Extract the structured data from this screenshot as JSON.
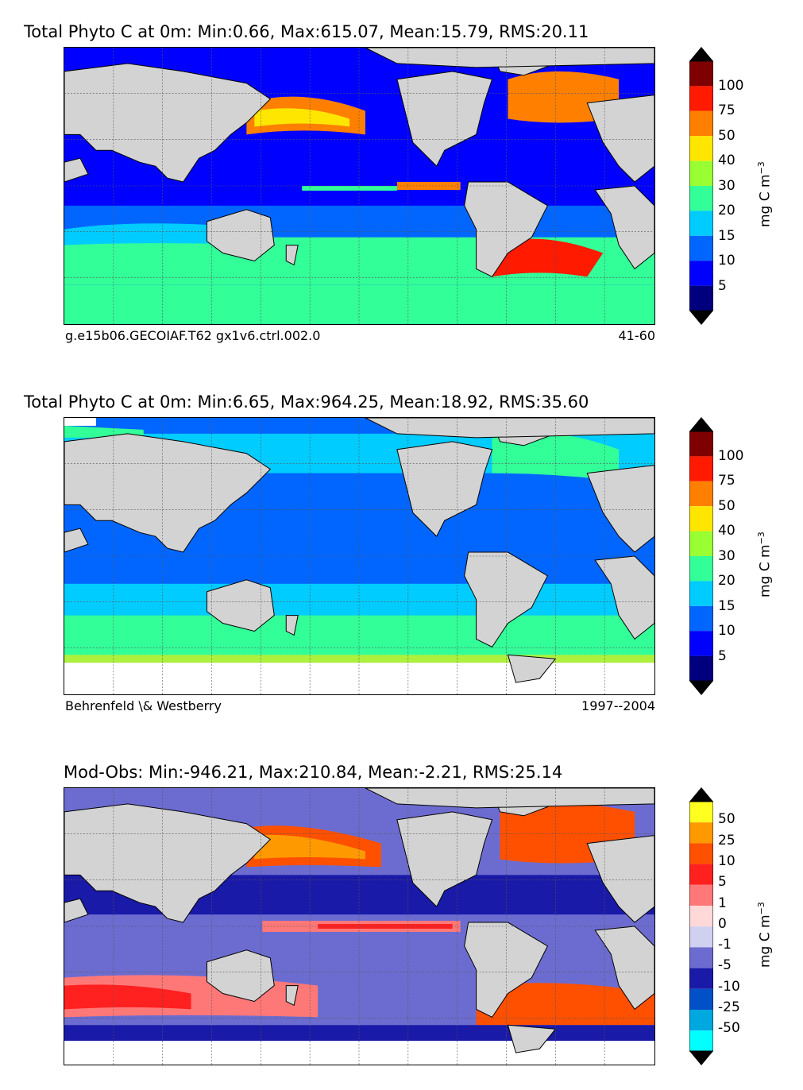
{
  "colors": {
    "land": "#d3d3d3",
    "conc_scale": [
      "#00007f",
      "#0000ff",
      "#0066ff",
      "#00ccff",
      "#33ff99",
      "#99ff33",
      "#ffe600",
      "#ff8000",
      "#ff1a00",
      "#7f0000"
    ],
    "diff_scale": [
      "#00ffff",
      "#00a8e0",
      "#0050c8",
      "#1a1aa8",
      "#6c6cd0",
      "#d0d0f0",
      "#ffd8d8",
      "#ff7878",
      "#ff2020",
      "#ff5000",
      "#ff9900",
      "#ffff20"
    ]
  },
  "panels": [
    {
      "title": "Total Phyto C at 0m: Min:0.66, Max:615.07, Mean:15.79, RMS:20.11",
      "caption_left": "g.e15b06.GECOIAF.T62 gx1v6.ctrl.002.0",
      "caption_right": "41-60",
      "colorbar_ticks": [
        "100",
        "75",
        "50",
        "40",
        "30",
        "20",
        "15",
        "10",
        "5"
      ],
      "colorbar_unit": "mg C m",
      "colorbar_unit_exp": "−3"
    },
    {
      "title": "Total Phyto C at 0m: Min:6.65, Max:964.25, Mean:18.92, RMS:35.60",
      "caption_left": "Behrenfeld \\& Westberry",
      "caption_right": "1997--2004",
      "colorbar_ticks": [
        "100",
        "75",
        "50",
        "40",
        "30",
        "20",
        "15",
        "10",
        "5"
      ],
      "colorbar_unit": "mg C m",
      "colorbar_unit_exp": "−3"
    },
    {
      "title": "Mod-Obs: Min:-946.21, Max:210.84, Mean:-2.21, RMS:25.14",
      "caption_left": "",
      "caption_right": "",
      "colorbar_ticks": [
        "50",
        "25",
        "10",
        "5",
        "1",
        "0",
        "-1",
        "-5",
        "-10",
        "-25",
        "-50"
      ],
      "colorbar_unit": "mg C m",
      "colorbar_unit_exp": "−3"
    }
  ]
}
